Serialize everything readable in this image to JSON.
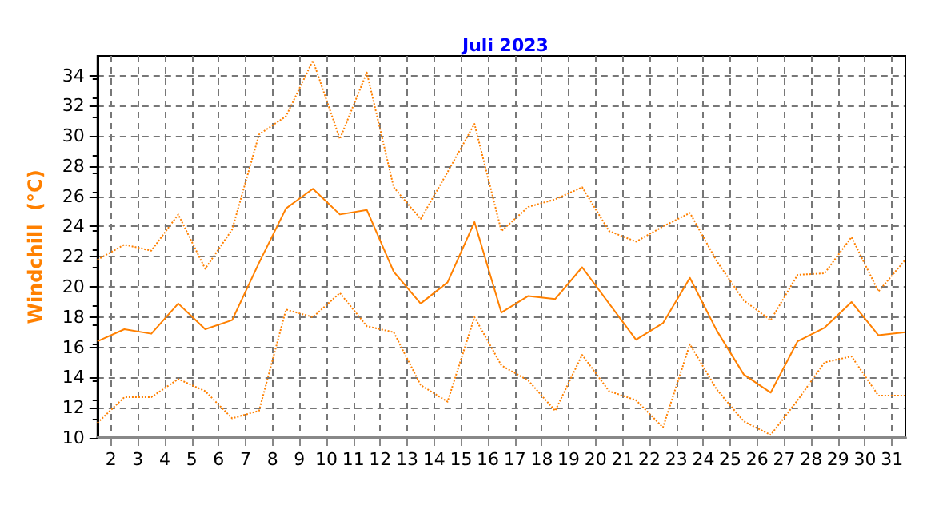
{
  "chart_data": {
    "type": "line",
    "title": "Juli 2023",
    "ylabel": "Windchill  (°C)",
    "x": [
      1.5,
      2.5,
      3.5,
      4.5,
      5.5,
      6.5,
      7.5,
      8.5,
      9.5,
      10.5,
      11.5,
      12.5,
      13.5,
      14.5,
      15.5,
      16.5,
      17.5,
      18.5,
      19.5,
      20.5,
      21.5,
      22.5,
      23.5,
      24.5,
      25.5,
      26.5,
      27.5,
      28.5,
      29.5,
      30.5,
      31.5
    ],
    "xlim": [
      1.5,
      31.5
    ],
    "xticks": [
      2,
      3,
      4,
      5,
      6,
      7,
      8,
      9,
      10,
      11,
      12,
      13,
      14,
      15,
      16,
      17,
      18,
      19,
      20,
      21,
      22,
      23,
      24,
      25,
      26,
      27,
      28,
      29,
      30,
      31
    ],
    "ylim": [
      10,
      35.3
    ],
    "yticks": [
      10,
      12,
      14,
      16,
      18,
      20,
      22,
      24,
      26,
      28,
      30,
      32,
      34
    ],
    "grid": true,
    "marker": "none",
    "series": [
      {
        "color": "#ff8000",
        "line_style": "dotted",
        "values": [
          21.8,
          22.8,
          22.4,
          24.8,
          21.2,
          23.8,
          30.1,
          31.3,
          35.0,
          29.8,
          34.2,
          26.6,
          24.5,
          27.6,
          30.8,
          23.7,
          25.3,
          25.8,
          26.6,
          23.7,
          23.0,
          24.0,
          24.9,
          21.7,
          19.1,
          17.8,
          20.8,
          20.9,
          23.3,
          19.7,
          21.8
        ]
      },
      {
        "color": "#ff8000",
        "line_style": "solid",
        "values": [
          16.4,
          17.2,
          16.9,
          18.9,
          17.2,
          17.8,
          21.6,
          25.2,
          26.5,
          24.8,
          25.1,
          21.0,
          18.9,
          20.3,
          24.3,
          18.3,
          19.4,
          19.2,
          21.3,
          18.9,
          16.5,
          17.6,
          20.6,
          17.1,
          14.2,
          13.0,
          16.4,
          17.3,
          19.0,
          16.8,
          17.0
        ]
      },
      {
        "color": "#ff8000",
        "line_style": "dotted",
        "values": [
          11.0,
          12.7,
          12.7,
          13.9,
          13.1,
          11.3,
          11.8,
          18.5,
          18.0,
          19.6,
          17.4,
          17.0,
          13.5,
          12.4,
          18.0,
          14.8,
          13.8,
          11.8,
          15.5,
          13.1,
          12.5,
          10.7,
          16.2,
          13.2,
          11.1,
          10.2,
          12.5,
          15.0,
          15.4,
          12.8,
          12.8
        ]
      }
    ]
  }
}
